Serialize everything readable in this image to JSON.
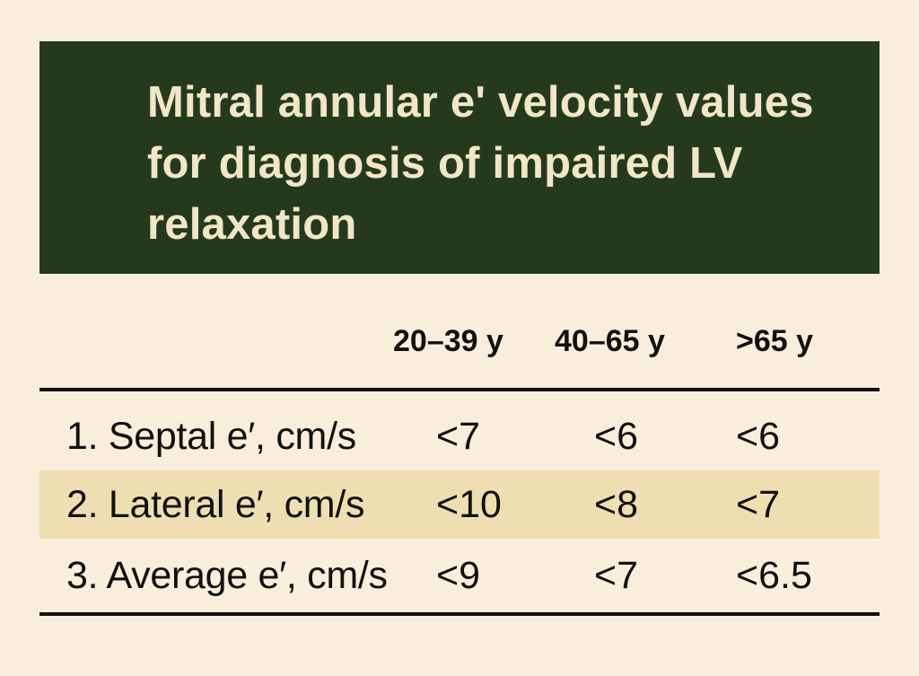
{
  "title": "Mitral annular e' velocity values for diagnosis of impaired LV relaxation",
  "table": {
    "columns": [
      "20–39 y",
      "40–65 y",
      ">65 y"
    ],
    "rows": [
      {
        "label": "1. Septal e′, cm/s",
        "values": [
          "<7",
          "<6",
          "<6"
        ]
      },
      {
        "label": "2. Lateral e′, cm/s",
        "values": [
          "<10",
          "<8",
          "<7"
        ]
      },
      {
        "label": "3. Average e′, cm/s",
        "values": [
          "<9",
          "<7",
          "<6.5"
        ]
      }
    ]
  },
  "colors": {
    "background": "#f8eedb",
    "title_bg": "#253a1d",
    "title_text": "#f1e6c6",
    "shaded_row": "#eddfb1",
    "text": "#111111"
  }
}
